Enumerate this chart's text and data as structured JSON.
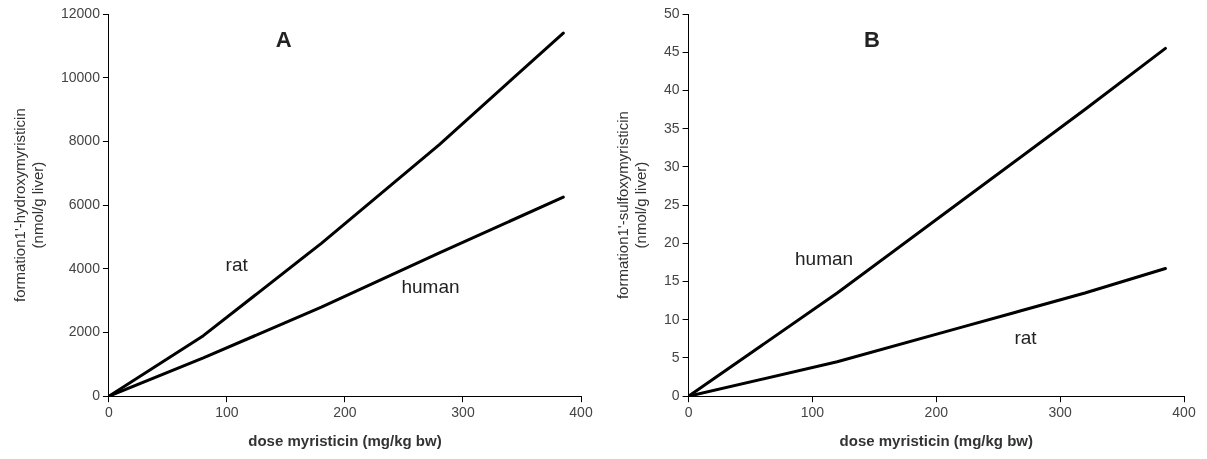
{
  "chart_data": [
    {
      "type": "line",
      "title": "A",
      "xlabel": "dose myristicin (mg/kg bw)",
      "ylabel": "formation1'-hydroxymyristicin\n(nmol/g liver)",
      "xlim": [
        0,
        400
      ],
      "xticks": [
        0,
        100,
        200,
        300,
        400
      ],
      "ylim": [
        0,
        12000
      ],
      "yticks": [
        0,
        2000,
        4000,
        6000,
        8000,
        10000,
        12000
      ],
      "grid": false,
      "legend": false,
      "marker": "none",
      "line_style": "solid",
      "series": [
        {
          "name": "rat",
          "color": "#000000",
          "x": [
            0,
            80,
            180,
            280,
            385
          ],
          "values": [
            0,
            1900,
            4800,
            7900,
            11400
          ]
        },
        {
          "name": "human",
          "color": "#000000",
          "x": [
            0,
            80,
            180,
            280,
            385
          ],
          "values": [
            0,
            1200,
            2800,
            4500,
            6250
          ]
        }
      ]
    },
    {
      "type": "line",
      "title": "B",
      "xlabel": "dose myristicin (mg/kg bw)",
      "ylabel": "formation1'-sulfoxymyristicin\n(nmol/g liver)",
      "xlim": [
        0,
        400
      ],
      "xticks": [
        0,
        100,
        200,
        300,
        400
      ],
      "ylim": [
        0,
        50
      ],
      "yticks": [
        0,
        5,
        10,
        15,
        20,
        25,
        30,
        35,
        40,
        45,
        50
      ],
      "grid": false,
      "legend": false,
      "marker": "none",
      "line_style": "solid",
      "series": [
        {
          "name": "human",
          "color": "#000000",
          "x": [
            0,
            120,
            220,
            320,
            385
          ],
          "values": [
            0,
            13.5,
            25.5,
            37.5,
            45.5
          ]
        },
        {
          "name": "rat",
          "color": "#000000",
          "x": [
            0,
            120,
            220,
            320,
            385
          ],
          "values": [
            0,
            4.5,
            9,
            13.5,
            16.7
          ]
        }
      ]
    }
  ]
}
